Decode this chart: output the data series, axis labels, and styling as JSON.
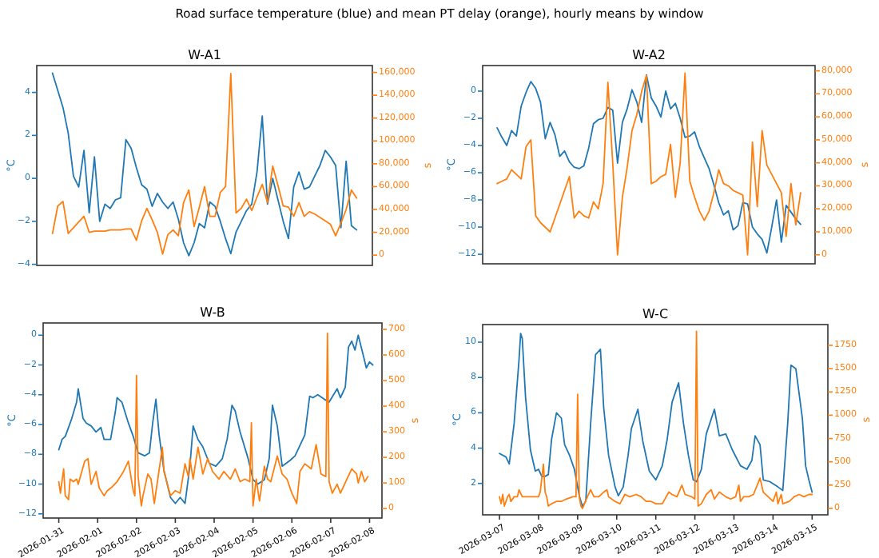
{
  "chart_data": [
    {
      "type": "line",
      "title": "W-A1",
      "annotations": [
        "Road surface temperature (blue) and mean PT delay (orange), hourly means by window"
      ],
      "ylabel": "°C",
      "y2label": "s",
      "categories": [
        null,
        null,
        null,
        null,
        null,
        null,
        null,
        null,
        null,
        null,
        null,
        null,
        null,
        null,
        null,
        null,
        null,
        null,
        null,
        null,
        null,
        null,
        null,
        null,
        null,
        null,
        null,
        null,
        null,
        null,
        null,
        null,
        null,
        null,
        null,
        null,
        null,
        null,
        null,
        null,
        null,
        null,
        null,
        null,
        null,
        null,
        null,
        null,
        null,
        null,
        null,
        null,
        null,
        null,
        null,
        null,
        null,
        null,
        null
      ],
      "ylim": [
        -4.05,
        5.25
      ],
      "yticks": [
        {
          "value": -4,
          "label": "−4"
        },
        {
          "value": -2,
          "label": "−2"
        },
        0,
        2,
        4
      ],
      "y2lim": [
        -9000,
        166000
      ],
      "y2ticks": [
        0,
        {
          "value": 20000,
          "label": "20,000"
        },
        {
          "value": 40000,
          "label": "40,000"
        },
        {
          "value": 60000,
          "label": "60,000"
        },
        {
          "value": 80000,
          "label": "80,000"
        },
        {
          "value": 100000,
          "label": "100,000"
        },
        {
          "value": 120000,
          "label": "120,000"
        },
        {
          "value": 140000,
          "label": "140,000"
        },
        {
          "value": 160000,
          "label": "160,000"
        }
      ],
      "series": [
        {
          "color": "#1f77b4",
          "values": [
            4.9,
            4.1,
            3.3,
            2.1,
            0.1,
            -0.4,
            1.3,
            -1.6,
            1,
            -2,
            -1.2,
            -1.4,
            -1,
            -0.9,
            1.8,
            1.4,
            0.5,
            -0.3,
            -0.5,
            -1.3,
            -0.7,
            -1.1,
            -1.4,
            -1.1,
            -1.9,
            -3,
            -3.6,
            -3,
            -2.1,
            -2.3,
            -1.1,
            -1.3,
            -2,
            -2.8,
            -3.5,
            -2.5,
            -2,
            -1.5,
            -1.2,
            0.3,
            2.9,
            -1.2,
            0,
            -1,
            -2,
            -2.8,
            -0.4,
            0.3,
            -0.5,
            -0.4,
            0.1,
            0.6,
            1.3,
            1,
            0.6,
            -2.3,
            0.8,
            -2.2,
            -2.4
          ]
        },
        {
          "color": "#ff7f0e",
          "axis": "y2",
          "values": [
            19000,
            43000,
            47000,
            19000,
            24000,
            29000,
            34000,
            20000,
            21000,
            21000,
            21000,
            22000,
            22000,
            22000,
            23000,
            23000,
            13000,
            30000,
            41000,
            31000,
            20000,
            1000,
            18000,
            22000,
            17000,
            46000,
            57000,
            25000,
            42000,
            60000,
            34000,
            34000,
            55000,
            60000,
            159000,
            37000,
            41000,
            49000,
            39000,
            51000,
            62000,
            46000,
            78000,
            61000,
            43000,
            42000,
            34000,
            46000,
            34000,
            38000,
            36000,
            33000,
            30000,
            27000,
            17000,
            28000,
            40000,
            57000,
            50000
          ]
        }
      ]
    },
    {
      "type": "line",
      "title": "W-A2",
      "ylabel": "°C",
      "y2label": "s",
      "categories": [
        null,
        null,
        null,
        null,
        null,
        null,
        null,
        null,
        null,
        null,
        null,
        null,
        null,
        null,
        null,
        null,
        null,
        null,
        null,
        null,
        null,
        null,
        null,
        null,
        null,
        null,
        null,
        null,
        null,
        null,
        null,
        null,
        null,
        null,
        null,
        null,
        null,
        null,
        null,
        null,
        null,
        null,
        null,
        null,
        null,
        null,
        null,
        null,
        null,
        null,
        null,
        null,
        null,
        null,
        null,
        null,
        null,
        null,
        null,
        null,
        null,
        null,
        null,
        null
      ],
      "ylim": [
        -12.7,
        1.88
      ],
      "yticks": [
        {
          "value": -12,
          "label": "−12"
        },
        {
          "value": -10,
          "label": "−10"
        },
        {
          "value": -8,
          "label": "−8"
        },
        {
          "value": -6,
          "label": "−6"
        },
        {
          "value": -4,
          "label": "−4"
        },
        {
          "value": -2,
          "label": "−2"
        },
        0
      ],
      "y2lim": [
        -3900,
        82300
      ],
      "y2ticks": [
        0,
        {
          "value": 10000,
          "label": "10,000"
        },
        {
          "value": 20000,
          "label": "20,000"
        },
        {
          "value": 30000,
          "label": "30,000"
        },
        {
          "value": 40000,
          "label": "40,000"
        },
        {
          "value": 50000,
          "label": "50,000"
        },
        {
          "value": 60000,
          "label": "60,000"
        },
        {
          "value": 70000,
          "label": "70,000"
        },
        {
          "value": 80000,
          "label": "80,000"
        }
      ],
      "series": [
        {
          "color": "#1f77b4",
          "values": [
            -2.7,
            -3.4,
            -4,
            -2.9,
            -3.3,
            -1.1,
            -0.1,
            0.7,
            0.2,
            -0.8,
            -3.5,
            -2.3,
            -3.2,
            -4.8,
            -4.4,
            -5.2,
            -5.6,
            -5.7,
            -5.5,
            -4.2,
            -2.4,
            -2.1,
            -2,
            -1.2,
            -1.4,
            -5.3,
            -2.3,
            -1.3,
            0.1,
            -0.8,
            -2.3,
            1.2,
            -0.5,
            -1.1,
            -1.9,
            0,
            -1.3,
            -0.9,
            -2,
            -3.4,
            -3.3,
            -3,
            -4.1,
            -4.9,
            -5.7,
            -6.9,
            -8.2,
            -9.1,
            -8.8,
            -10.2,
            -9.9,
            -8.2,
            -8.3,
            -10,
            -10.5,
            -10.9,
            -11.9,
            -10,
            -8,
            -11.1,
            -8.4,
            -8.9,
            -9.4,
            -9.8
          ]
        },
        {
          "color": "#ff7f0e",
          "axis": "y2",
          "values": [
            31000,
            32000,
            33000,
            37000,
            35000,
            33000,
            47000,
            50000,
            17000,
            14000,
            12000,
            10000,
            16000,
            22000,
            28000,
            34000,
            16000,
            19000,
            17000,
            16000,
            23000,
            20000,
            31000,
            75000,
            40000,
            0,
            25000,
            38000,
            54000,
            61000,
            71000,
            78000,
            31000,
            32000,
            34000,
            35000,
            48000,
            25000,
            40000,
            79000,
            32000,
            25000,
            19000,
            15000,
            19000,
            27000,
            37000,
            31000,
            30000,
            28000,
            27000,
            26000,
            0,
            49000,
            21000,
            54000,
            39000,
            35000,
            31000,
            27000,
            8000,
            31000,
            13000,
            27000
          ]
        }
      ]
    },
    {
      "type": "line",
      "title": "W-B",
      "ylabel": "°C",
      "y2label": "s",
      "xlim": [
        "2026-01-30T14:20",
        "2026-02-08T07:40"
      ],
      "xticks": [
        "2026-01-31",
        "2026-02-01",
        "2026-02-02",
        "2026-02-03",
        "2026-02-04",
        "2026-02-05",
        "2026-02-06",
        "2026-02-07",
        "2026-02-08"
      ],
      "ylim": [
        -12.28,
        0.82
      ],
      "yticks": [
        {
          "value": -12,
          "label": "−12"
        },
        {
          "value": -10,
          "label": "−10"
        },
        {
          "value": -8,
          "label": "−8"
        },
        {
          "value": -6,
          "label": "−6"
        },
        {
          "value": -4,
          "label": "−4"
        },
        {
          "value": -2,
          "label": "−2"
        },
        0
      ],
      "y2lim": [
        -37,
        725
      ],
      "y2ticks": [
        0,
        100,
        200,
        300,
        400,
        500,
        600,
        700
      ],
      "series": [
        {
          "color": "#1f77b4",
          "x": [
            "2026-01-31T00:00",
            "2026-01-31T02:00",
            "2026-01-31T04:00",
            "2026-01-31T05:00",
            "2026-01-31T08:00",
            "2026-01-31T11:00",
            "2026-01-31T12:00",
            "2026-01-31T15:00",
            "2026-01-31T17:00",
            "2026-01-31T20:00",
            "2026-01-31T23:00",
            "2026-02-01T02:00",
            "2026-02-01T04:00",
            "2026-02-01T08:00",
            "2026-02-01T11:00",
            "2026-02-01T12:00",
            "2026-02-01T15:00",
            "2026-02-01T19:00",
            "2026-02-01T22:00",
            "2026-02-02T01:00",
            "2026-02-02T05:00",
            "2026-02-02T08:00",
            "2026-02-02T10:00",
            "2026-02-02T12:00",
            "2026-02-02T14:00",
            "2026-02-02T17:00",
            "2026-02-02T21:00",
            "2026-02-03T00:00",
            "2026-02-03T03:00",
            "2026-02-03T06:00",
            "2026-02-03T09:00",
            "2026-02-03T11:00",
            "2026-02-03T14:00",
            "2026-02-03T17:00",
            "2026-02-03T21:00",
            "2026-02-04T01:00",
            "2026-02-04T05:00",
            "2026-02-04T08:00",
            "2026-02-04T11:00",
            "2026-02-04T13:00",
            "2026-02-04T16:00",
            "2026-02-04T21:00",
            "2026-02-05T00:00",
            "2026-02-05T03:00",
            "2026-02-05T07:00",
            "2026-02-05T10:00",
            "2026-02-05T12:00",
            "2026-02-05T15:00",
            "2026-02-05T18:00",
            "2026-02-05T23:00",
            "2026-02-06T02:00",
            "2026-02-06T05:00",
            "2026-02-06T08:00",
            "2026-02-06T11:00",
            "2026-02-06T13:00",
            "2026-02-06T16:00",
            "2026-02-06T20:00",
            "2026-02-06T23:00",
            "2026-02-07T04:00",
            "2026-02-07T06:00",
            "2026-02-07T09:00",
            "2026-02-07T11:00",
            "2026-02-07T13:00",
            "2026-02-07T15:00",
            "2026-02-07T17:00",
            "2026-02-07T20:00",
            "2026-02-07T22:00",
            "2026-02-08T00:00",
            "2026-02-08T02:00"
          ],
          "values": [
            -7.7,
            -7,
            -6.8,
            -6.5,
            -5.6,
            -4.5,
            -3.6,
            -5.6,
            -5.9,
            -6.1,
            -6.5,
            -6.2,
            -7,
            -7,
            -5.1,
            -4.2,
            -4.5,
            -5.9,
            -6.8,
            -7.9,
            -8.1,
            -7.9,
            -5.9,
            -4.3,
            -6.7,
            -9.1,
            -10.9,
            -11.3,
            -10.9,
            -11.3,
            -8.8,
            -6.1,
            -7,
            -7.5,
            -8.6,
            -8.8,
            -8.3,
            -7,
            -4.7,
            -5.1,
            -6.5,
            -8.3,
            -9.7,
            -10,
            -9.7,
            -8.3,
            -4.7,
            -6.1,
            -8.8,
            -8.4,
            -8.1,
            -7.4,
            -6.7,
            -4.1,
            -4.2,
            -4,
            -4.3,
            -4.5,
            -3.6,
            -4.2,
            -3.5,
            -0.8,
            -0.4,
            -1,
            0,
            -1.3,
            -2.2,
            -1.8,
            -2
          ]
        },
        {
          "color": "#ff7f0e",
          "axis": "y2",
          "x": [
            "2026-01-31T00:00",
            "2026-01-31T01:00",
            "2026-01-31T03:00",
            "2026-01-31T04:00",
            "2026-01-31T06:00",
            "2026-01-31T07:00",
            "2026-01-31T09:00",
            "2026-01-31T11:00",
            "2026-01-31T12:00",
            "2026-01-31T16:00",
            "2026-01-31T18:00",
            "2026-01-31T20:00",
            "2026-01-31T23:00",
            "2026-02-01T01:00",
            "2026-02-01T04:00",
            "2026-02-01T06:00",
            "2026-02-01T09:00",
            "2026-02-01T12:00",
            "2026-02-01T16:00",
            "2026-02-01T19:00",
            "2026-02-01T22:00",
            "2026-02-01T23:00",
            "2026-02-02T00:00",
            "2026-02-02T01:00",
            "2026-02-02T03:00",
            "2026-02-02T04:00",
            "2026-02-02T07:00",
            "2026-02-02T09:00",
            "2026-02-02T11:00",
            "2026-02-02T16:00",
            "2026-02-02T17:00",
            "2026-02-02T21:00",
            "2026-02-03T00:00",
            "2026-02-03T03:00",
            "2026-02-03T06:00",
            "2026-02-03T08:00",
            "2026-02-03T09:00",
            "2026-02-03T11:00",
            "2026-02-03T14:00",
            "2026-02-03T17:00",
            "2026-02-03T20:00",
            "2026-02-03T23:00",
            "2026-02-04T03:00",
            "2026-02-04T06:00",
            "2026-02-04T10:00",
            "2026-02-04T13:00",
            "2026-02-04T16:00",
            "2026-02-04T19:00",
            "2026-02-04T22:00",
            "2026-02-04T23:00",
            "2026-02-05T00:00",
            "2026-02-05T02:00",
            "2026-02-05T04:00",
            "2026-02-05T07:00",
            "2026-02-05T09:00",
            "2026-02-05T11:00",
            "2026-02-05T15:00",
            "2026-02-05T18:00",
            "2026-02-05T21:00",
            "2026-02-06T00:00",
            "2026-02-06T03:00",
            "2026-02-06T05:00",
            "2026-02-06T08:00",
            "2026-02-06T12:00",
            "2026-02-06T15:00",
            "2026-02-06T18:00",
            "2026-02-06T21:00",
            "2026-02-06T22:00",
            "2026-02-06T23:00",
            "2026-02-07T01:00",
            "2026-02-07T04:00",
            "2026-02-07T06:00",
            "2026-02-07T10:00",
            "2026-02-07T13:00",
            "2026-02-07T16:00",
            "2026-02-07T17:00",
            "2026-02-07T19:00",
            "2026-02-07T21:00",
            "2026-02-07T23:00"
          ],
          "values": [
            105,
            60,
            155,
            50,
            35,
            115,
            105,
            115,
            95,
            185,
            195,
            95,
            145,
            80,
            50,
            70,
            85,
            105,
            145,
            185,
            70,
            50,
            520,
            125,
            10,
            50,
            135,
            115,
            20,
            240,
            145,
            50,
            70,
            60,
            175,
            125,
            195,
            115,
            240,
            135,
            195,
            145,
            115,
            145,
            115,
            155,
            105,
            115,
            105,
            335,
            10,
            115,
            30,
            165,
            115,
            105,
            205,
            135,
            115,
            60,
            20,
            145,
            175,
            155,
            250,
            135,
            125,
            685,
            105,
            60,
            95,
            60,
            115,
            155,
            135,
            100,
            145,
            105,
            125
          ]
        }
      ]
    },
    {
      "type": "line",
      "title": "W-C",
      "ylabel": "°C",
      "y2label": "s",
      "xlim": [
        "2026-03-06T13:40",
        "2026-03-15T09:40"
      ],
      "xticks": [
        "2026-03-07",
        "2026-03-08",
        "2026-03-09",
        "2026-03-10",
        "2026-03-11",
        "2026-03-12",
        "2026-03-13",
        "2026-03-14",
        "2026-03-15"
      ],
      "ylim": [
        0.22,
        11
      ],
      "yticks": [
        2,
        4,
        6,
        8,
        10
      ],
      "y2lim": [
        -69,
        1973
      ],
      "y2ticks": [
        0,
        250,
        500,
        750,
        1000,
        1250,
        1500,
        1750
      ],
      "series": [
        {
          "color": "#1f77b4",
          "x": [
            "2026-03-07T00:00",
            "2026-03-07T04:00",
            "2026-03-07T06:00",
            "2026-03-07T09:00",
            "2026-03-07T12:00",
            "2026-03-07T13:00",
            "2026-03-07T14:00",
            "2026-03-07T16:00",
            "2026-03-07T19:00",
            "2026-03-07T22:00",
            "2026-03-08T00:00",
            "2026-03-08T02:00",
            "2026-03-08T04:00",
            "2026-03-08T06:00",
            "2026-03-08T08:00",
            "2026-03-08T11:00",
            "2026-03-08T14:00",
            "2026-03-08T16:00",
            "2026-03-08T19:00",
            "2026-03-08T22:00",
            "2026-03-09T01:00",
            "2026-03-09T03:00",
            "2026-03-09T05:00",
            "2026-03-09T08:00",
            "2026-03-09T11:00",
            "2026-03-09T14:00",
            "2026-03-09T16:00",
            "2026-03-09T19:00",
            "2026-03-09T23:00",
            "2026-03-10T01:00",
            "2026-03-10T04:00",
            "2026-03-10T07:00",
            "2026-03-10T09:00",
            "2026-03-10T13:00",
            "2026-03-10T16:00",
            "2026-03-10T20:00",
            "2026-03-11T00:00",
            "2026-03-11T04:00",
            "2026-03-11T07:00",
            "2026-03-11T10:00",
            "2026-03-11T14:00",
            "2026-03-11T17:00",
            "2026-03-11T20:00",
            "2026-03-11T23:00",
            "2026-03-12T01:00",
            "2026-03-12T04:00",
            "2026-03-12T07:00",
            "2026-03-12T12:00",
            "2026-03-12T15:00",
            "2026-03-12T19:00",
            "2026-03-12T23:00",
            "2026-03-13T04:00",
            "2026-03-13T08:00",
            "2026-03-13T11:00",
            "2026-03-13T13:00",
            "2026-03-13T16:00",
            "2026-03-13T18:00",
            "2026-03-13T22:00",
            "2026-03-14T03:00",
            "2026-03-14T06:00",
            "2026-03-14T09:00",
            "2026-03-14T11:00",
            "2026-03-14T14:00",
            "2026-03-14T18:00",
            "2026-03-14T20:00",
            "2026-03-14T22:00",
            "2026-03-15T00:00"
          ],
          "values": [
            3.7,
            3.5,
            3.1,
            5.4,
            9,
            10.5,
            10.2,
            6.9,
            3.9,
            2.7,
            2.8,
            2.4,
            2.4,
            2.5,
            4.5,
            6,
            5.7,
            4.2,
            3.6,
            2.8,
            1.3,
            0.7,
            1,
            5.4,
            9.3,
            9.6,
            6.3,
            3.6,
            1.8,
            1.3,
            1.8,
            3.6,
            5.1,
            6.2,
            4.4,
            2.7,
            2.2,
            3,
            4.5,
            6.6,
            7.7,
            5.4,
            3.6,
            2.2,
            2.1,
            2.8,
            4.8,
            6.2,
            4.7,
            4.8,
            3.9,
            3,
            2.8,
            3.3,
            4.7,
            4.2,
            2.2,
            2.1,
            1.8,
            1.6,
            5.4,
            8.7,
            8.5,
            5.7,
            3,
            2.2,
            1.5
          ]
        },
        {
          "color": "#ff7f0e",
          "axis": "y2",
          "x": [
            "2026-03-07T00:00",
            "2026-03-07T01:00",
            "2026-03-07T02:00",
            "2026-03-07T03:00",
            "2026-03-07T05:00",
            "2026-03-07T06:00",
            "2026-03-07T07:00",
            "2026-03-07T09:00",
            "2026-03-07T11:00",
            "2026-03-07T12:00",
            "2026-03-07T14:00",
            "2026-03-07T17:00",
            "2026-03-07T20:00",
            "2026-03-08T00:00",
            "2026-03-08T01:00",
            "2026-03-08T02:00",
            "2026-03-08T03:00",
            "2026-03-08T04:00",
            "2026-03-08T05:00",
            "2026-03-08T06:00",
            "2026-03-08T08:00",
            "2026-03-08T11:00",
            "2026-03-08T14:00",
            "2026-03-08T17:00",
            "2026-03-08T21:00",
            "2026-03-08T23:00",
            "2026-03-09T00:00",
            "2026-03-09T01:00",
            "2026-03-09T02:00",
            "2026-03-09T03:00",
            "2026-03-09T06:00",
            "2026-03-09T08:00",
            "2026-03-09T10:00",
            "2026-03-09T13:00",
            "2026-03-09T16:00",
            "2026-03-09T18:00",
            "2026-03-09T19:00",
            "2026-03-09T23:00",
            "2026-03-10T02:00",
            "2026-03-10T05:00",
            "2026-03-10T08:00",
            "2026-03-10T12:00",
            "2026-03-10T15:00",
            "2026-03-10T18:00",
            "2026-03-10T21:00",
            "2026-03-11T00:00",
            "2026-03-11T04:00",
            "2026-03-11T08:00",
            "2026-03-11T10:00",
            "2026-03-11T13:00",
            "2026-03-11T16:00",
            "2026-03-11T18:00",
            "2026-03-11T22:00",
            "2026-03-12T00:00",
            "2026-03-12T01:00",
            "2026-03-12T02:00",
            "2026-03-12T04:00",
            "2026-03-12T07:00",
            "2026-03-12T10:00",
            "2026-03-12T12:00",
            "2026-03-12T15:00",
            "2026-03-12T19:00",
            "2026-03-12T22:00",
            "2026-03-13T01:00",
            "2026-03-13T03:00",
            "2026-03-13T04:00",
            "2026-03-13T06:00",
            "2026-03-13T09:00",
            "2026-03-13T12:00",
            "2026-03-13T16:00",
            "2026-03-13T18:00",
            "2026-03-13T21:00",
            "2026-03-14T00:00",
            "2026-03-14T02:00",
            "2026-03-14T03:00",
            "2026-03-14T05:00",
            "2026-03-14T06:00",
            "2026-03-14T10:00",
            "2026-03-14T13:00",
            "2026-03-14T16:00",
            "2026-03-14T19:00",
            "2026-03-14T22:00",
            "2026-03-15T00:00"
          ],
          "values": [
            125,
            50,
            150,
            25,
            125,
            150,
            75,
            125,
            125,
            200,
            125,
            125,
            125,
            125,
            175,
            325,
            475,
            175,
            125,
            25,
            50,
            75,
            75,
            100,
            125,
            125,
            1225,
            125,
            25,
            0,
            125,
            200,
            125,
            125,
            175,
            200,
            125,
            75,
            50,
            150,
            125,
            150,
            125,
            75,
            75,
            50,
            50,
            175,
            150,
            125,
            250,
            150,
            125,
            100,
            1900,
            25,
            50,
            150,
            200,
            100,
            175,
            125,
            100,
            125,
            250,
            75,
            125,
            125,
            150,
            325,
            175,
            125,
            75,
            175,
            50,
            150,
            50,
            75,
            125,
            150,
            125,
            150,
            150
          ]
        }
      ]
    }
  ]
}
